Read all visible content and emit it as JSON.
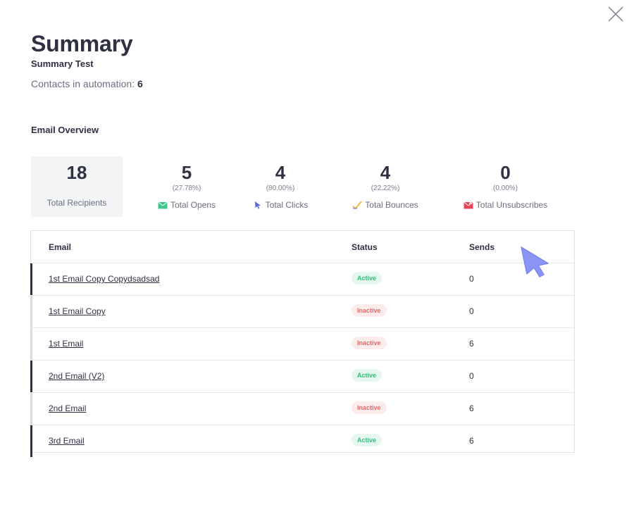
{
  "header": {
    "title": "Summary",
    "subtitle": "Summary Test",
    "contacts_label": "Contacts in automation:",
    "contacts_count": "6",
    "close_icon": "close-icon"
  },
  "overview": {
    "section_title": "Email Overview",
    "recipients": {
      "value": "18",
      "label": "Total Recipients"
    },
    "opens": {
      "value": "5",
      "pct": "(27.78%)",
      "label": "Total Opens",
      "icon": "envelope-open-icon"
    },
    "clicks": {
      "value": "4",
      "pct": "(80.00%)",
      "label": "Total Clicks",
      "icon": "pointer-icon"
    },
    "bounces": {
      "value": "4",
      "pct": "(22.22%)",
      "label": "Total Bounces",
      "icon": "bounce-icon"
    },
    "unsubscribes": {
      "value": "0",
      "pct": "(0.00%)",
      "label": "Total Unsubscribes",
      "icon": "unsubscribe-icon"
    }
  },
  "table": {
    "headers": {
      "email": "Email",
      "status": "Status",
      "sends": "Sends"
    },
    "rows": [
      {
        "name": "1st Email Copy Copydsadsad",
        "status": "Active",
        "sends": "0"
      },
      {
        "name": "1st Email Copy",
        "status": "Inactive",
        "sends": "0"
      },
      {
        "name": "1st Email",
        "status": "Inactive",
        "sends": "6"
      },
      {
        "name": "2nd Email (V2)",
        "status": "Active",
        "sends": "0"
      },
      {
        "name": "2nd Email",
        "status": "Inactive",
        "sends": "6"
      },
      {
        "name": "3rd Email",
        "status": "Active",
        "sends": "6"
      }
    ]
  },
  "colors": {
    "active_accent": "#2f3142",
    "inactive_accent": "#d9dbe1",
    "active_badge": "#2fbf7a",
    "inactive_badge": "#e06a6a",
    "cursor": "#8b95f5"
  }
}
